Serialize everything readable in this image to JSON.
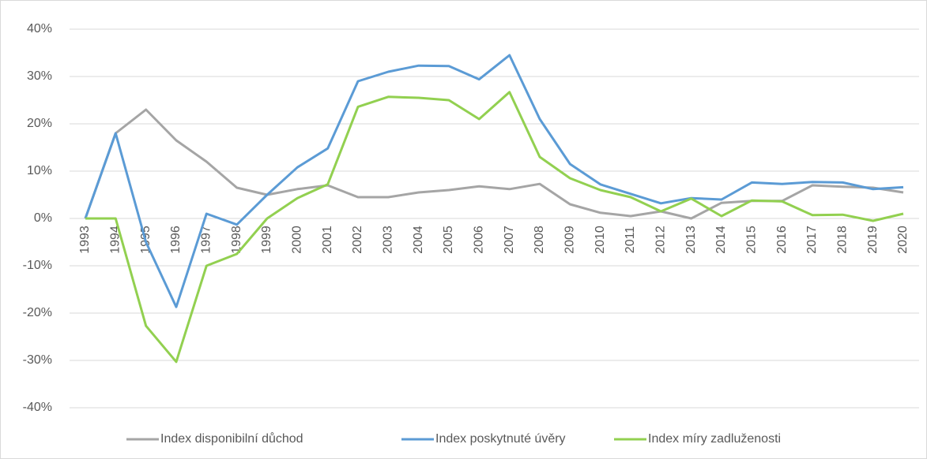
{
  "chart_data": {
    "type": "line",
    "categories": [
      "1993",
      "1994",
      "1995",
      "1996",
      "1997",
      "1998",
      "1999",
      "2000",
      "2001",
      "2002",
      "2003",
      "2004",
      "2005",
      "2006",
      "2007",
      "2008",
      "2009",
      "2010",
      "2011",
      "2012",
      "2013",
      "2014",
      "2015",
      "2016",
      "2017",
      "2018",
      "2019",
      "2020"
    ],
    "series": [
      {
        "name": "Index disponibilní důchod",
        "color": "#a5a5a5",
        "values": [
          0,
          18,
          23,
          16.5,
          12,
          6.5,
          5,
          6.2,
          7,
          4.5,
          4.5,
          5.5,
          6,
          6.8,
          6.2,
          7.3,
          3,
          1.2,
          0.5,
          1.5,
          0,
          3.3,
          3.7,
          3.7,
          7,
          6.7,
          6.5,
          5.5
        ]
      },
      {
        "name": "Index poskytnuté úvěry",
        "color": "#5b9bd5",
        "values": [
          0,
          18,
          -5,
          -18.7,
          1,
          -1.3,
          5,
          10.8,
          14.8,
          29,
          31,
          32.3,
          32.2,
          29.4,
          34.5,
          21,
          11.5,
          7.2,
          5.2,
          3.2,
          4.3,
          4,
          7.6,
          7.3,
          7.7,
          7.6,
          6.2,
          6.6
        ]
      },
      {
        "name": "Index míry zadluženosti",
        "color": "#92d050",
        "values": [
          0,
          0,
          -22.7,
          -30.3,
          -10,
          -7.5,
          0,
          4.3,
          7.2,
          23.6,
          25.7,
          25.5,
          25,
          21,
          26.7,
          13,
          8.5,
          6,
          4.5,
          1.5,
          4.2,
          0.5,
          3.8,
          3.6,
          0.7,
          0.8,
          -0.5,
          1
        ]
      }
    ],
    "ylim": [
      -40,
      40
    ],
    "yticks": [
      {
        "value": -40,
        "label": "-40%"
      },
      {
        "value": -30,
        "label": "-30%"
      },
      {
        "value": -20,
        "label": "-20%"
      },
      {
        "value": -10,
        "label": "-10%"
      },
      {
        "value": 0,
        "label": "0%"
      },
      {
        "value": 10,
        "label": "10%"
      },
      {
        "value": 20,
        "label": "20%"
      },
      {
        "value": 30,
        "label": "30%"
      },
      {
        "value": 40,
        "label": "40%"
      }
    ],
    "grid": true,
    "legend": "bottom"
  }
}
